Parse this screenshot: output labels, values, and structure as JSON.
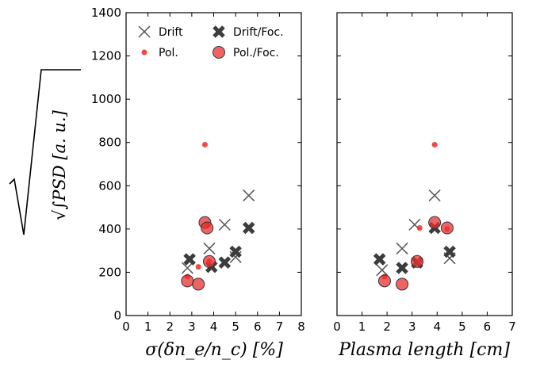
{
  "chart_data": [
    {
      "type": "scatter",
      "xlabel": "σ(δn_e/n_c) [%]",
      "ylabel": "√∫PSD [a. u.]",
      "xlim": [
        0,
        8
      ],
      "ylim": [
        0,
        1400
      ],
      "x_ticks": [
        "0",
        "1",
        "2",
        "3",
        "4",
        "5",
        "6",
        "7",
        "8"
      ],
      "y_ticks": [
        "0",
        "200",
        "400",
        "600",
        "800",
        "1000",
        "1200",
        "1400"
      ],
      "legend_position": "top",
      "series": [
        {
          "name": "Drift",
          "marker": "x",
          "color": "#555555",
          "points": [
            [
              2.8,
              220
            ],
            [
              3.8,
              310
            ],
            [
              4.5,
              420
            ],
            [
              5.0,
              270
            ],
            [
              5.6,
              555
            ]
          ]
        },
        {
          "name": "Drift/Foc.",
          "marker": "X",
          "color": "#3c3c3c",
          "points": [
            [
              2.9,
              260
            ],
            [
              3.9,
              225
            ],
            [
              4.5,
              245
            ],
            [
              5.0,
              295
            ],
            [
              5.6,
              405
            ]
          ]
        },
        {
          "name": "Pol.",
          "marker": "dot",
          "color": "#ee3333",
          "points": [
            [
              2.8,
              180
            ],
            [
              3.3,
              225
            ],
            [
              3.6,
              790
            ],
            [
              3.7,
              420
            ],
            [
              3.8,
              250
            ]
          ]
        },
        {
          "name": "Pol./Foc.",
          "marker": "circle",
          "color": "#e83030",
          "points": [
            [
              2.8,
              160
            ],
            [
              3.3,
              145
            ],
            [
              3.6,
              430
            ],
            [
              3.7,
              405
            ],
            [
              3.8,
              250
            ]
          ]
        }
      ]
    },
    {
      "type": "scatter",
      "xlabel": "Plasma length [cm]",
      "ylabel": "",
      "xlim": [
        0,
        7
      ],
      "ylim": [
        0,
        1400
      ],
      "x_ticks": [
        "0",
        "1",
        "2",
        "3",
        "4",
        "5",
        "6",
        "7"
      ],
      "y_ticks": [],
      "series": [
        {
          "name": "Drift",
          "marker": "x",
          "color": "#555555",
          "points": [
            [
              1.8,
              210
            ],
            [
              2.6,
              310
            ],
            [
              3.1,
              420
            ],
            [
              3.9,
              555
            ],
            [
              4.5,
              265
            ]
          ]
        },
        {
          "name": "Drift/Foc.",
          "marker": "X",
          "color": "#3c3c3c",
          "points": [
            [
              1.7,
              260
            ],
            [
              2.6,
              220
            ],
            [
              3.2,
              245
            ],
            [
              3.9,
              405
            ],
            [
              4.5,
              295
            ]
          ]
        },
        {
          "name": "Pol.",
          "marker": "dot",
          "color": "#ee3333",
          "points": [
            [
              1.9,
              180
            ],
            [
              3.3,
              405
            ],
            [
              3.9,
              790
            ],
            [
              4.4,
              400
            ],
            [
              3.3,
              250
            ]
          ]
        },
        {
          "name": "Pol./Foc.",
          "marker": "circle",
          "color": "#e83030",
          "points": [
            [
              1.9,
              160
            ],
            [
              2.6,
              145
            ],
            [
              3.2,
              250
            ],
            [
              3.9,
              430
            ],
            [
              4.4,
              405
            ]
          ]
        }
      ]
    }
  ],
  "legend": [
    {
      "label": "Drift",
      "marker": "x"
    },
    {
      "label": "Drift/Foc.",
      "marker": "X"
    },
    {
      "label": "Pol.",
      "marker": "dot"
    },
    {
      "label": "Pol./Foc.",
      "marker": "circle"
    }
  ]
}
